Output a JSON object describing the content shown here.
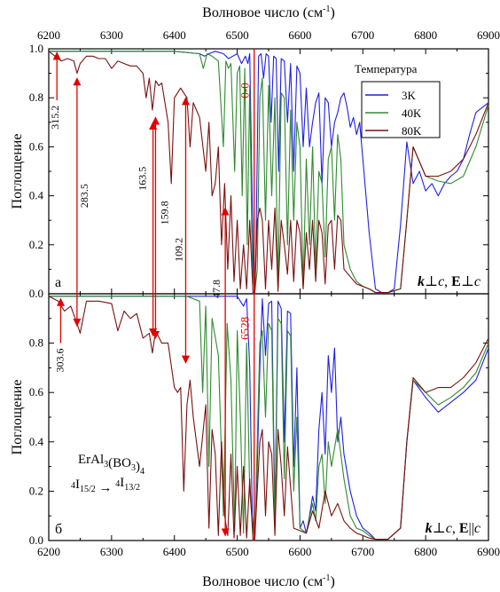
{
  "colors": {
    "t3": "#1f1fe6",
    "t40": "#2e8b2e",
    "t80": "#7a1010",
    "arrow": "#e00000",
    "frame": "#000000"
  },
  "legend": {
    "title": "Температура",
    "items": [
      {
        "label": "3K",
        "color": "#1f1fe6"
      },
      {
        "label": "40K",
        "color": "#2e8b2e"
      },
      {
        "label": "80K",
        "color": "#7a1010"
      }
    ]
  },
  "chart_data": [
    {
      "type": "line",
      "panel_label": "а",
      "polarization": "k⊥c, E⊥c",
      "xlabel": "Волновое число (см⁻¹)",
      "ylabel": "Поглощение",
      "xlim": [
        6200,
        6900
      ],
      "ylim": [
        0,
        1.0
      ],
      "xticks": [
        "6200",
        "6300",
        "6400",
        "6500",
        "6600",
        "6700",
        "6800",
        "6900"
      ],
      "yticks": [
        "0.0",
        "0.2",
        "0.4",
        "0.6",
        "0.8",
        "1.0"
      ],
      "series": [
        {
          "name": "3K",
          "x": [
            6200,
            6400,
            6440,
            6448,
            6455,
            6465,
            6478,
            6486,
            6493,
            6500,
            6507,
            6513,
            6517,
            6520,
            6526,
            6528,
            6530,
            6534,
            6538,
            6542,
            6546,
            6550,
            6554,
            6558,
            6562,
            6566,
            6570,
            6575,
            6580,
            6585,
            6590,
            6595,
            6600,
            6605,
            6610,
            6615,
            6620,
            6625,
            6630,
            6635,
            6640,
            6645,
            6650,
            6655,
            6660,
            6665,
            6670,
            6675,
            6680,
            6685,
            6690,
            6695,
            6700,
            6710,
            6720,
            6730,
            6740,
            6750,
            6760,
            6770,
            6780,
            6790,
            6800,
            6810,
            6820,
            6830,
            6840,
            6850,
            6860,
            6870,
            6880,
            6890,
            6900
          ],
          "y": [
            0.99,
            0.99,
            0.98,
            0.97,
            0.98,
            0.99,
            0.98,
            0.96,
            0.97,
            0.98,
            0.94,
            0.97,
            0.94,
            0.98,
            0.05,
            0.005,
            0.2,
            0.97,
            0.98,
            0.88,
            0.98,
            0.97,
            0.7,
            0.97,
            0.96,
            0.5,
            0.96,
            0.95,
            0.7,
            0.94,
            0.5,
            0.93,
            0.9,
            0.6,
            0.84,
            0.6,
            0.7,
            0.78,
            0.82,
            0.45,
            0.8,
            0.78,
            0.6,
            0.7,
            0.74,
            0.8,
            0.82,
            0.76,
            0.68,
            0.72,
            0.65,
            0.7,
            0.55,
            0.25,
            0.02,
            0.005,
            0.005,
            0.02,
            0.28,
            0.62,
            0.45,
            0.5,
            0.42,
            0.45,
            0.4,
            0.45,
            0.48,
            0.5,
            0.55,
            0.65,
            0.74,
            0.76,
            0.78
          ]
        },
        {
          "name": "40K",
          "x": [
            6200,
            6400,
            6440,
            6446,
            6452,
            6460,
            6470,
            6478,
            6482,
            6486,
            6490,
            6496,
            6500,
            6504,
            6508,
            6512,
            6516,
            6520,
            6524,
            6528,
            6532,
            6536,
            6540,
            6545,
            6550,
            6555,
            6560,
            6565,
            6570,
            6575,
            6580,
            6585,
            6590,
            6595,
            6600,
            6605,
            6610,
            6615,
            6620,
            6625,
            6630,
            6635,
            6640,
            6645,
            6650,
            6655,
            6660,
            6665,
            6670,
            6680,
            6690,
            6700,
            6710,
            6720,
            6740,
            6760,
            6770,
            6780,
            6800,
            6820,
            6840,
            6860,
            6880,
            6900
          ],
          "y": [
            0.99,
            0.99,
            0.98,
            0.92,
            0.98,
            0.97,
            0.95,
            0.6,
            0.95,
            0.92,
            0.94,
            0.5,
            0.9,
            0.93,
            0.4,
            0.92,
            0.2,
            0.85,
            0.1,
            0.005,
            0.1,
            0.8,
            0.88,
            0.3,
            0.85,
            0.4,
            0.8,
            0.03,
            0.82,
            0.8,
            0.2,
            0.75,
            0.3,
            0.7,
            0.6,
            0.03,
            0.55,
            0.2,
            0.6,
            0.1,
            0.5,
            0.45,
            0.15,
            0.55,
            0.6,
            0.3,
            0.65,
            0.55,
            0.2,
            0.1,
            0.05,
            0.03,
            0.02,
            0.005,
            0.005,
            0.02,
            0.3,
            0.6,
            0.48,
            0.46,
            0.45,
            0.48,
            0.6,
            0.77
          ]
        },
        {
          "name": "80K",
          "x": [
            6200,
            6210,
            6220,
            6230,
            6240,
            6245,
            6250,
            6260,
            6270,
            6280,
            6290,
            6300,
            6310,
            6320,
            6330,
            6340,
            6350,
            6355,
            6360,
            6365,
            6370,
            6375,
            6380,
            6390,
            6395,
            6400,
            6405,
            6410,
            6415,
            6420,
            6425,
            6430,
            6440,
            6450,
            6455,
            6460,
            6465,
            6470,
            6475,
            6480,
            6485,
            6490,
            6495,
            6500,
            6505,
            6510,
            6515,
            6520,
            6525,
            6528,
            6532,
            6536,
            6540,
            6545,
            6550,
            6555,
            6560,
            6565,
            6570,
            6575,
            6580,
            6585,
            6590,
            6595,
            6600,
            6605,
            6610,
            6615,
            6620,
            6625,
            6630,
            6635,
            6640,
            6645,
            6650,
            6655,
            6660,
            6665,
            6670,
            6680,
            6690,
            6700,
            6710,
            6720,
            6740,
            6760,
            6770,
            6780,
            6800,
            6820,
            6840,
            6860,
            6880,
            6900
          ],
          "y": [
            0.99,
            0.97,
            0.95,
            0.96,
            0.95,
            0.9,
            0.94,
            0.97,
            0.97,
            0.96,
            0.96,
            0.92,
            0.95,
            0.94,
            0.93,
            0.93,
            0.9,
            0.8,
            0.88,
            0.75,
            0.87,
            0.85,
            0.86,
            0.7,
            0.45,
            0.8,
            0.82,
            0.84,
            0.82,
            0.8,
            0.6,
            0.78,
            0.72,
            0.5,
            0.7,
            0.4,
            0.45,
            0.6,
            0.2,
            0.45,
            0.1,
            0.4,
            0.05,
            0.3,
            0.02,
            0.2,
            0.02,
            0.3,
            0.005,
            0.005,
            0.3,
            0.35,
            0.3,
            0.02,
            0.3,
            0.1,
            0.35,
            0.01,
            0.3,
            0.2,
            0.08,
            0.3,
            0.05,
            0.3,
            0.25,
            0.02,
            0.25,
            0.1,
            0.3,
            0.05,
            0.3,
            0.25,
            0.04,
            0.28,
            0.3,
            0.1,
            0.32,
            0.3,
            0.1,
            0.07,
            0.04,
            0.03,
            0.02,
            0.005,
            0.005,
            0.02,
            0.3,
            0.6,
            0.48,
            0.48,
            0.5,
            0.55,
            0.65,
            0.78
          ]
        }
      ],
      "annotations": [
        "315.2",
        "283.5",
        "163.5",
        "159.8",
        "109.2",
        "47.8",
        "0-0"
      ]
    },
    {
      "type": "line",
      "panel_label": "б",
      "polarization": "k⊥c, E||c",
      "compound": "ErAl3(BO3)4",
      "transition": "4I15/2 → 4I13/2",
      "xlabel": "Волновое число (см⁻¹)",
      "ylabel": "Поглощение",
      "xlim": [
        6200,
        6900
      ],
      "ylim": [
        0,
        1.0
      ],
      "xticks": [
        "6200",
        "6300",
        "6400",
        "6500",
        "6600",
        "6700",
        "6800",
        "6900"
      ],
      "yticks": [
        "0.0",
        "0.2",
        "0.4",
        "0.6",
        "0.8"
      ],
      "series": [
        {
          "name": "3K",
          "x": [
            6200,
            6500,
            6510,
            6515,
            6520,
            6524,
            6528,
            6532,
            6536,
            6540,
            6545,
            6550,
            6555,
            6560,
            6565,
            6570,
            6575,
            6580,
            6585,
            6590,
            6595,
            6600,
            6605,
            6610,
            6615,
            6620,
            6625,
            6630,
            6635,
            6640,
            6645,
            6650,
            6655,
            6660,
            6665,
            6670,
            6680,
            6690,
            6700,
            6710,
            6720,
            6740,
            6760,
            6770,
            6780,
            6800,
            6820,
            6840,
            6860,
            6880,
            6900
          ],
          "y": [
            0.99,
            0.99,
            0.95,
            0.98,
            0.7,
            0.1,
            0.005,
            0.3,
            0.7,
            0.98,
            0.75,
            0.96,
            0.97,
            0.1,
            0.97,
            0.94,
            0.4,
            0.93,
            0.92,
            0.3,
            0.7,
            0.05,
            0.08,
            0.03,
            0.1,
            0.18,
            0.12,
            0.45,
            0.6,
            0.35,
            0.75,
            0.6,
            0.78,
            0.4,
            0.5,
            0.35,
            0.2,
            0.1,
            0.05,
            0.03,
            0.005,
            0.005,
            0.05,
            0.4,
            0.65,
            0.58,
            0.52,
            0.56,
            0.6,
            0.65,
            0.78
          ]
        },
        {
          "name": "40K",
          "x": [
            6200,
            6420,
            6440,
            6445,
            6450,
            6455,
            6460,
            6470,
            6478,
            6484,
            6490,
            6496,
            6500,
            6505,
            6510,
            6515,
            6520,
            6525,
            6528,
            6532,
            6536,
            6540,
            6545,
            6550,
            6555,
            6560,
            6565,
            6570,
            6575,
            6580,
            6585,
            6590,
            6595,
            6600,
            6610,
            6620,
            6625,
            6630,
            6635,
            6640,
            6645,
            6650,
            6660,
            6670,
            6680,
            6690,
            6700,
            6710,
            6720,
            6740,
            6760,
            6770,
            6780,
            6800,
            6820,
            6840,
            6860,
            6880,
            6900
          ],
          "y": [
            0.99,
            0.99,
            0.97,
            0.6,
            0.95,
            0.3,
            0.9,
            0.75,
            0.1,
            0.88,
            0.65,
            0.04,
            0.85,
            0.5,
            0.03,
            0.8,
            0.2,
            0.05,
            0.005,
            0.4,
            0.8,
            0.85,
            0.5,
            0.88,
            0.85,
            0.05,
            0.9,
            0.88,
            0.25,
            0.85,
            0.83,
            0.2,
            0.5,
            0.05,
            0.03,
            0.15,
            0.08,
            0.3,
            0.35,
            0.15,
            0.4,
            0.3,
            0.45,
            0.25,
            0.1,
            0.05,
            0.04,
            0.02,
            0.005,
            0.005,
            0.05,
            0.4,
            0.65,
            0.6,
            0.55,
            0.58,
            0.62,
            0.68,
            0.8
          ]
        },
        {
          "name": "80K",
          "x": [
            6200,
            6215,
            6225,
            6235,
            6245,
            6250,
            6260,
            6280,
            6300,
            6310,
            6320,
            6330,
            6340,
            6350,
            6360,
            6365,
            6370,
            6380,
            6390,
            6400,
            6405,
            6410,
            6415,
            6420,
            6425,
            6430,
            6440,
            6450,
            6455,
            6460,
            6465,
            6470,
            6475,
            6480,
            6485,
            6490,
            6495,
            6500,
            6505,
            6510,
            6515,
            6520,
            6525,
            6528,
            6532,
            6536,
            6540,
            6545,
            6550,
            6555,
            6560,
            6565,
            6570,
            6575,
            6580,
            6590,
            6600,
            6610,
            6620,
            6630,
            6640,
            6650,
            6660,
            6670,
            6680,
            6690,
            6700,
            6710,
            6720,
            6740,
            6760,
            6770,
            6780,
            6800,
            6820,
            6840,
            6860,
            6880,
            6900
          ],
          "y": [
            0.99,
            0.97,
            0.93,
            0.95,
            0.88,
            0.84,
            0.97,
            0.97,
            0.96,
            0.85,
            0.93,
            0.9,
            0.92,
            0.82,
            0.84,
            0.76,
            0.85,
            0.8,
            0.8,
            0.62,
            0.6,
            0.62,
            0.2,
            0.55,
            0.65,
            0.5,
            0.3,
            0.55,
            0.05,
            0.45,
            0.35,
            0.02,
            0.4,
            0.1,
            0.02,
            0.35,
            0.01,
            0.3,
            0.02,
            0.3,
            0.01,
            0.25,
            0.005,
            0.005,
            0.2,
            0.4,
            0.45,
            0.1,
            0.4,
            0.35,
            0.02,
            0.45,
            0.3,
            0.1,
            0.38,
            0.05,
            0.04,
            0.03,
            0.12,
            0.05,
            0.2,
            0.1,
            0.15,
            0.08,
            0.05,
            0.03,
            0.02,
            0.01,
            0.005,
            0.005,
            0.05,
            0.4,
            0.66,
            0.6,
            0.62,
            0.62,
            0.66,
            0.72,
            0.82
          ]
        }
      ],
      "annotations": [
        "303.6",
        "6528"
      ]
    }
  ],
  "labels": {
    "top_axis_title": "Волновое число (см⁻¹)",
    "bottom_axis_title": "Волновое число (см⁻¹)",
    "y_title": "Поглощение"
  }
}
